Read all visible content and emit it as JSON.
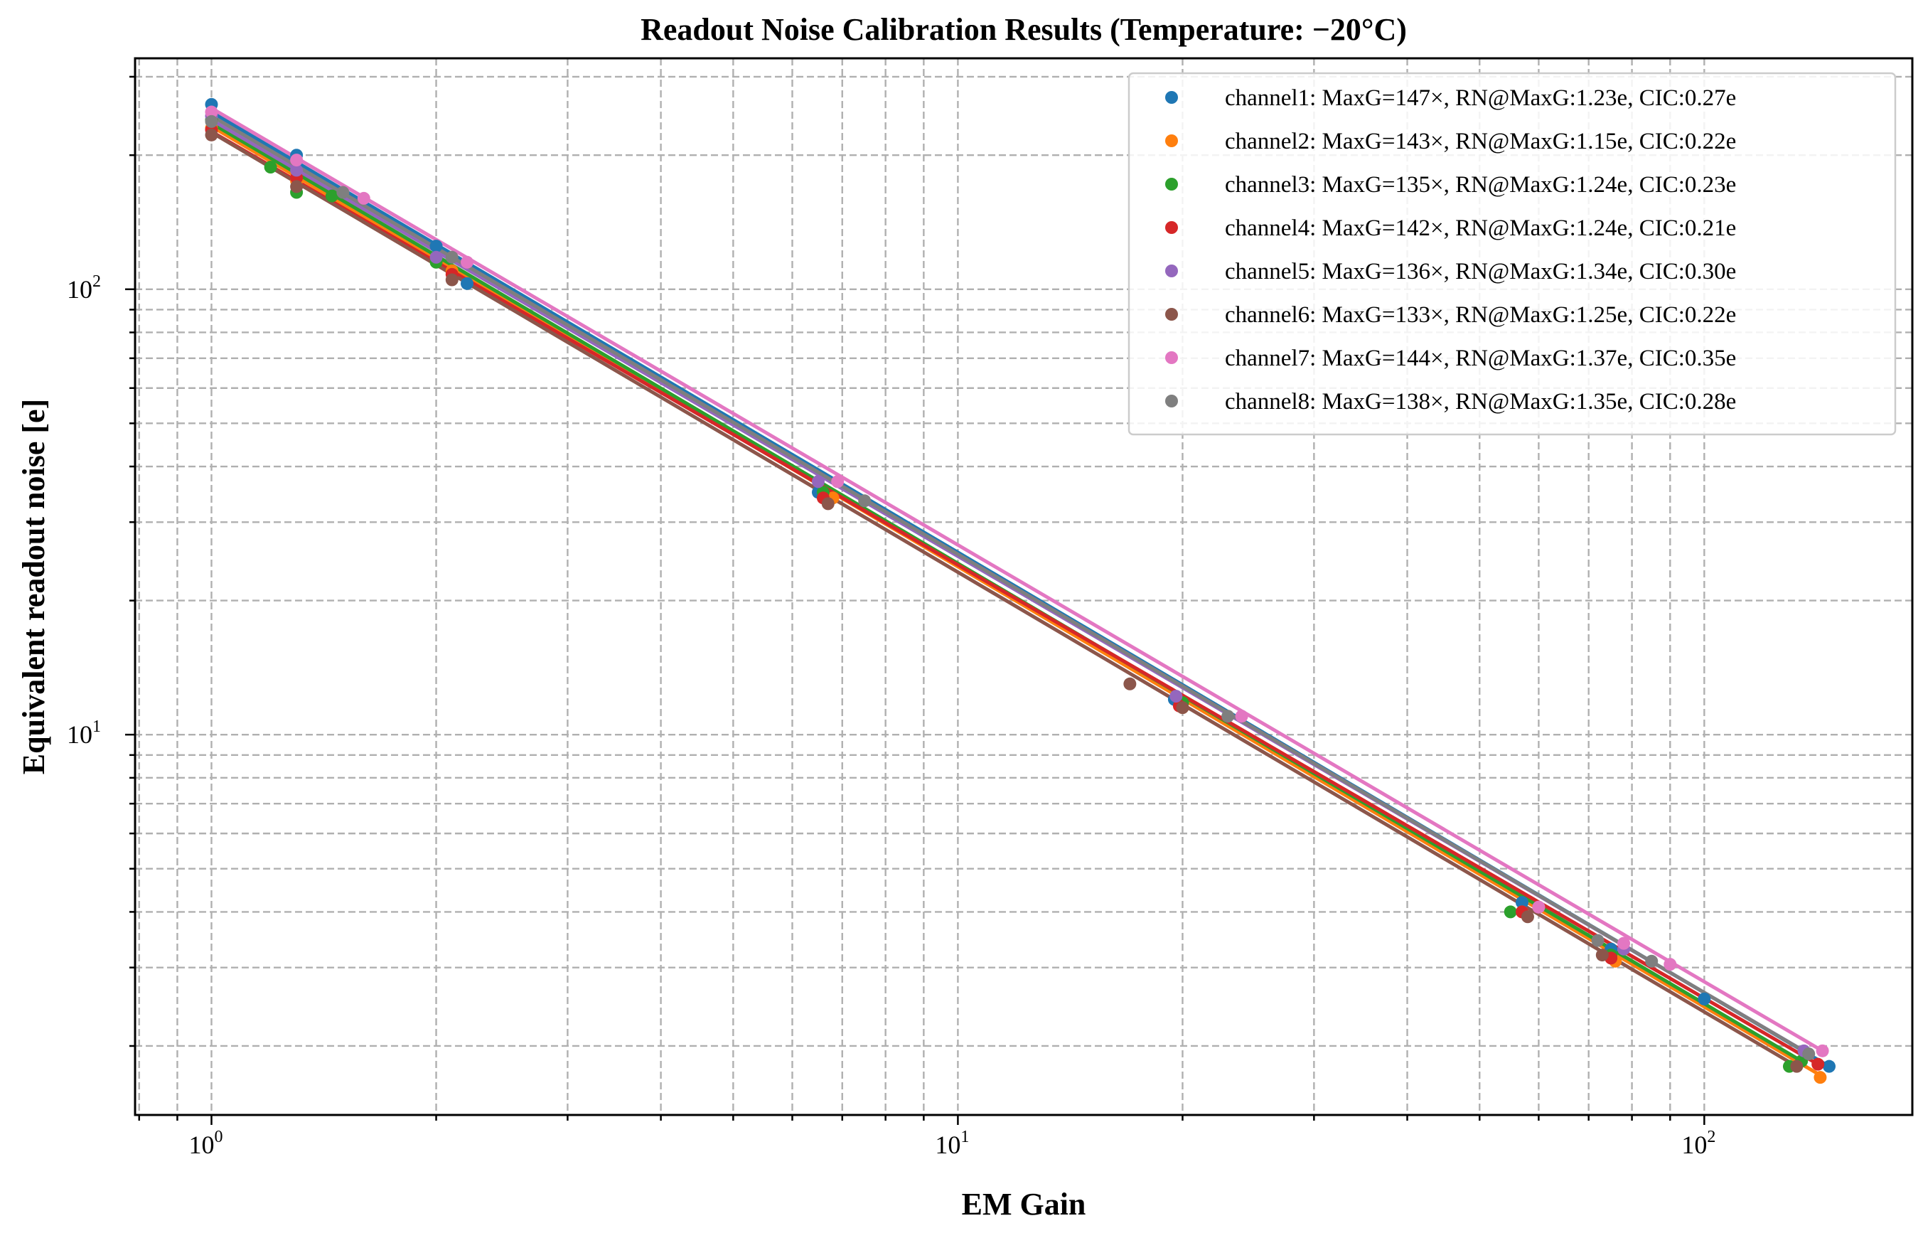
{
  "chart_data": {
    "type": "scatter",
    "title": "Readout Noise Calibration Results (Temperature: −20°C)",
    "xlabel": "EM Gain",
    "ylabel": "Equivalent readout noise [e]",
    "xscale": "log",
    "yscale": "log",
    "xlim": [
      0.79,
      190
    ],
    "ylim": [
      1.4,
      330
    ],
    "xticks": [
      {
        "value": 1,
        "base": "10",
        "exp": "0"
      },
      {
        "value": 10,
        "base": "10",
        "exp": "1"
      },
      {
        "value": 100,
        "base": "10",
        "exp": "2"
      }
    ],
    "yticks": [
      {
        "value": 10,
        "base": "10",
        "exp": "1"
      },
      {
        "value": 100,
        "base": "10",
        "exp": "2"
      }
    ],
    "grid": "major and minor, dashed",
    "legend_position": "top-right",
    "series": [
      {
        "name": "channel1: MaxG=147×, RN@MaxG:1.23e, CIC:0.27e",
        "color": "#1f77b4",
        "x": [
          1.0,
          1.3,
          2.0,
          2.2,
          6.5,
          19.5,
          57.0,
          75.0,
          100.0,
          147.0
        ],
        "y": [
          260,
          200,
          125,
          103,
          35,
          12,
          4.2,
          3.3,
          2.55,
          1.8
        ],
        "fit": [
          [
            1.0,
            250
          ],
          [
            147.0,
            1.8
          ]
        ]
      },
      {
        "name": "channel2: MaxG=143×, RN@MaxG:1.15e, CIC:0.22e",
        "color": "#ff7f0e",
        "x": [
          1.0,
          1.3,
          2.1,
          6.8,
          20.0,
          57.0,
          76.0,
          143.0
        ],
        "y": [
          230,
          175,
          110,
          34,
          11.5,
          4.0,
          3.1,
          1.7
        ],
        "fit": [
          [
            1.0,
            232
          ],
          [
            143.0,
            1.72
          ]
        ]
      },
      {
        "name": "channel3: MaxG=135×, RN@MaxG:1.24e, CIC:0.23e",
        "color": "#2ca02c",
        "x": [
          1.0,
          1.2,
          1.3,
          1.45,
          2.0,
          6.6,
          20.0,
          55.0,
          75.0,
          130.0,
          135.0
        ],
        "y": [
          240,
          188,
          165,
          162,
          115,
          35,
          11.8,
          4.0,
          3.2,
          1.8,
          1.85
        ],
        "fit": [
          [
            1.0,
            236
          ],
          [
            135.0,
            1.85
          ]
        ]
      },
      {
        "name": "channel4: MaxG=142×, RN@MaxG:1.24e, CIC:0.21e",
        "color": "#d62728",
        "x": [
          1.0,
          1.3,
          2.1,
          6.6,
          19.8,
          57.0,
          75.0,
          142.0
        ],
        "y": [
          228,
          178,
          108,
          34,
          11.6,
          4.0,
          3.15,
          1.82
        ],
        "fit": [
          [
            1.0,
            226
          ],
          [
            142.0,
            1.82
          ]
        ]
      },
      {
        "name": "channel5: MaxG=136×, RN@MaxG:1.34e, CIC:0.30e",
        "color": "#9467bd",
        "x": [
          1.0,
          1.3,
          2.0,
          6.5,
          19.6,
          60.0,
          78.0,
          136.0
        ],
        "y": [
          245,
          185,
          118,
          37,
          12.2,
          4.1,
          3.3,
          1.95
        ],
        "fit": [
          [
            1.0,
            240
          ],
          [
            136.0,
            1.95
          ]
        ]
      },
      {
        "name": "channel6: MaxG=133×, RN@MaxG:1.25e, CIC:0.22e",
        "color": "#8c564b",
        "x": [
          1.0,
          1.3,
          2.1,
          6.7,
          17.0,
          20.0,
          58.0,
          73.0,
          133.0
        ],
        "y": [
          222,
          170,
          105,
          33,
          13,
          11.5,
          3.9,
          3.2,
          1.8
        ],
        "fit": [
          [
            1.0,
            225
          ],
          [
            133.0,
            1.8
          ]
        ]
      },
      {
        "name": "channel7: MaxG=144×, RN@MaxG:1.37e, CIC:0.35e",
        "color": "#e377c2",
        "x": [
          1.0,
          1.3,
          1.6,
          2.2,
          6.9,
          24.0,
          60.0,
          78.0,
          90.0,
          144.0
        ],
        "y": [
          250,
          195,
          160,
          115,
          37,
          11,
          4.1,
          3.4,
          3.05,
          1.95
        ],
        "fit": [
          [
            1.0,
            255
          ],
          [
            144.0,
            1.95
          ]
        ]
      },
      {
        "name": "channel8: MaxG=138×, RN@MaxG:1.35e, CIC:0.28e",
        "color": "#7f7f7f",
        "x": [
          1.0,
          1.5,
          2.1,
          7.5,
          23.0,
          72.0,
          85.0,
          138.0
        ],
        "y": [
          238,
          165,
          118,
          33.5,
          11,
          3.45,
          3.1,
          1.92
        ],
        "fit": [
          [
            1.0,
            245
          ],
          [
            138.0,
            1.92
          ]
        ]
      }
    ]
  }
}
